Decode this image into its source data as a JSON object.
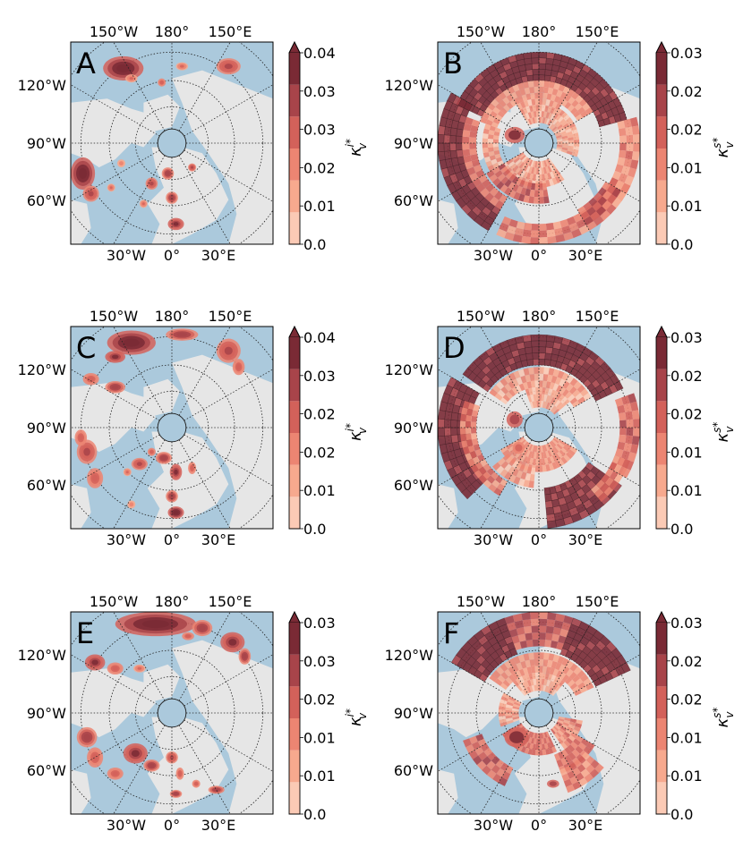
{
  "figure": {
    "panels": [
      {
        "id": "A",
        "label": "A",
        "cbar_ticks": [
          "0.0",
          "0.01",
          "0.02",
          "0.03",
          "0.03",
          "0.04"
        ],
        "cbar_label_sym": "κ",
        "cbar_label_sup": "i*",
        "cbar_label_sub": "v",
        "lon_top": [
          "150°W",
          "180°",
          "150°E"
        ],
        "lon_bottom": [
          "30°W",
          "0°",
          "30°E"
        ],
        "lat_left": [
          "120°W",
          "90°W",
          "60°W"
        ],
        "style": "fine",
        "blobs": [
          [
            0.26,
            0.13,
            0.1,
            0.06,
            1.0
          ],
          [
            0.45,
            0.2,
            0.02,
            0.02,
            0.6
          ],
          [
            0.3,
            0.18,
            0.03,
            0.02,
            0.5
          ],
          [
            0.55,
            0.12,
            0.03,
            0.02,
            0.5
          ],
          [
            0.78,
            0.12,
            0.06,
            0.04,
            0.7
          ],
          [
            0.06,
            0.65,
            0.06,
            0.08,
            1.0
          ],
          [
            0.1,
            0.75,
            0.04,
            0.04,
            0.7
          ],
          [
            0.4,
            0.7,
            0.03,
            0.03,
            0.7
          ],
          [
            0.48,
            0.65,
            0.03,
            0.03,
            0.8
          ],
          [
            0.5,
            0.77,
            0.03,
            0.03,
            0.8
          ],
          [
            0.52,
            0.9,
            0.04,
            0.03,
            0.9
          ],
          [
            0.6,
            0.62,
            0.02,
            0.02,
            0.7
          ],
          [
            0.2,
            0.72,
            0.02,
            0.02,
            0.5
          ],
          [
            0.36,
            0.8,
            0.02,
            0.02,
            0.5
          ],
          [
            0.25,
            0.6,
            0.02,
            0.02,
            0.4
          ]
        ]
      },
      {
        "id": "B",
        "label": "B",
        "cbar_ticks": [
          "0.0",
          "0.01",
          "0.01",
          "0.02",
          "0.02",
          "0.03"
        ],
        "cbar_label_sym": "κ",
        "cbar_label_sup": "s*",
        "cbar_label_sub": "v",
        "lon_top": [
          "150°W",
          "180°",
          "150°E"
        ],
        "lon_bottom": [
          "30°W",
          "0°",
          "30°E"
        ],
        "lat_left": [
          "120°W",
          "90°W",
          "60°W"
        ],
        "style": "coarse",
        "rings": [
          [
            0.31,
            0.45,
            205,
            345,
            0.95
          ],
          [
            0.38,
            0.5,
            120,
            210,
            0.95
          ],
          [
            0.4,
            0.5,
            25,
            115,
            0.45
          ],
          [
            0.4,
            0.5,
            345,
            395,
            0.4
          ],
          [
            0.22,
            0.31,
            200,
            330,
            0.35
          ],
          [
            0.1,
            0.22,
            240,
            300,
            0.3
          ],
          [
            0.09,
            0.2,
            300,
            380,
            0.25
          ],
          [
            0.09,
            0.22,
            55,
            150,
            0.3
          ],
          [
            0.2,
            0.3,
            80,
            150,
            0.55
          ],
          [
            0.2,
            0.28,
            150,
            200,
            0.3
          ],
          [
            0.31,
            0.38,
            120,
            200,
            0.5
          ],
          [
            0.38,
            0.47,
            30,
            60,
            0.6
          ]
        ],
        "blobs": [
          [
            0.38,
            0.46,
            0.05,
            0.04,
            0.85
          ]
        ]
      },
      {
        "id": "C",
        "label": "C",
        "cbar_ticks": [
          "0.0",
          "0.01",
          "0.02",
          "0.02",
          "0.03",
          "0.04"
        ],
        "cbar_label_sym": "κ",
        "cbar_label_sup": "i*",
        "cbar_label_sub": "v",
        "lon_top": [
          "150°W",
          "180°",
          "150°E"
        ],
        "lon_bottom": [
          "30°W",
          "0°",
          "30°E"
        ],
        "lat_left": [
          "120°W",
          "90°W",
          "60°W"
        ],
        "style": "fine",
        "blobs": [
          [
            0.3,
            0.08,
            0.12,
            0.06,
            1.0
          ],
          [
            0.22,
            0.15,
            0.05,
            0.03,
            0.9
          ],
          [
            0.55,
            0.04,
            0.08,
            0.03,
            0.8
          ],
          [
            0.78,
            0.12,
            0.06,
            0.06,
            0.7
          ],
          [
            0.83,
            0.2,
            0.03,
            0.04,
            0.6
          ],
          [
            0.1,
            0.26,
            0.04,
            0.03,
            0.6
          ],
          [
            0.22,
            0.3,
            0.05,
            0.03,
            0.8
          ],
          [
            0.08,
            0.62,
            0.05,
            0.06,
            0.7
          ],
          [
            0.12,
            0.75,
            0.04,
            0.05,
            0.6
          ],
          [
            0.05,
            0.55,
            0.03,
            0.04,
            0.6
          ],
          [
            0.34,
            0.68,
            0.04,
            0.03,
            0.7
          ],
          [
            0.46,
            0.65,
            0.04,
            0.03,
            0.8
          ],
          [
            0.52,
            0.72,
            0.03,
            0.04,
            0.9
          ],
          [
            0.5,
            0.84,
            0.03,
            0.03,
            0.8
          ],
          [
            0.52,
            0.92,
            0.04,
            0.03,
            1.0
          ],
          [
            0.4,
            0.62,
            0.02,
            0.02,
            0.6
          ],
          [
            0.28,
            0.72,
            0.02,
            0.02,
            0.5
          ],
          [
            0.6,
            0.7,
            0.02,
            0.03,
            0.6
          ],
          [
            0.3,
            0.88,
            0.02,
            0.02,
            0.4
          ]
        ]
      },
      {
        "id": "D",
        "label": "D",
        "cbar_ticks": [
          "0.0",
          "0.01",
          "0.01",
          "0.02",
          "0.02",
          "0.03"
        ],
        "cbar_label_sym": "κ",
        "cbar_label_sup": "s*",
        "cbar_label_sub": "v",
        "lon_top": [
          "150°W",
          "180°",
          "150°E"
        ],
        "lon_bottom": [
          "30°W",
          "0°",
          "30°E"
        ],
        "lat_left": [
          "120°W",
          "90°W",
          "60°W"
        ],
        "style": "coarse",
        "rings": [
          [
            0.31,
            0.46,
            215,
            335,
            0.95
          ],
          [
            0.34,
            0.5,
            135,
            210,
            0.95
          ],
          [
            0.3,
            0.5,
            35,
            85,
            0.9
          ],
          [
            0.4,
            0.5,
            340,
            390,
            0.55
          ],
          [
            0.2,
            0.3,
            215,
            330,
            0.3
          ],
          [
            0.09,
            0.22,
            30,
            150,
            0.35
          ],
          [
            0.2,
            0.3,
            95,
            140,
            0.3
          ],
          [
            0.31,
            0.39,
            120,
            200,
            0.45
          ],
          [
            0.4,
            0.48,
            20,
            50,
            0.45
          ],
          [
            0.1,
            0.2,
            250,
            320,
            0.25
          ]
        ],
        "blobs": [
          [
            0.38,
            0.46,
            0.04,
            0.04,
            0.7
          ],
          [
            0.4,
            0.6,
            0.03,
            0.03,
            0.55
          ]
        ]
      },
      {
        "id": "E",
        "label": "E",
        "cbar_ticks": [
          "0.0",
          "0.01",
          "0.01",
          "0.02",
          "0.03",
          "0.03"
        ],
        "cbar_label_sym": "κ",
        "cbar_label_sup": "i*",
        "cbar_label_sub": "v",
        "lon_top": [
          "150°W",
          "180°",
          "150°E"
        ],
        "lon_bottom": [
          "30°W",
          "0°",
          "30°E"
        ],
        "lat_left": [
          "120°W",
          "90°W",
          "60°W"
        ],
        "style": "fine",
        "blobs": [
          [
            0.42,
            0.06,
            0.2,
            0.06,
            1.0
          ],
          [
            0.65,
            0.08,
            0.05,
            0.04,
            0.8
          ],
          [
            0.8,
            0.15,
            0.06,
            0.05,
            0.9
          ],
          [
            0.86,
            0.22,
            0.03,
            0.04,
            0.8
          ],
          [
            0.12,
            0.25,
            0.05,
            0.04,
            0.9
          ],
          [
            0.22,
            0.28,
            0.04,
            0.03,
            0.6
          ],
          [
            0.34,
            0.28,
            0.03,
            0.02,
            0.5
          ],
          [
            0.58,
            0.12,
            0.03,
            0.02,
            0.6
          ],
          [
            0.08,
            0.62,
            0.05,
            0.05,
            0.8
          ],
          [
            0.12,
            0.72,
            0.04,
            0.05,
            0.6
          ],
          [
            0.22,
            0.8,
            0.04,
            0.03,
            0.6
          ],
          [
            0.32,
            0.7,
            0.06,
            0.05,
            0.9
          ],
          [
            0.4,
            0.76,
            0.04,
            0.03,
            0.8
          ],
          [
            0.5,
            0.72,
            0.03,
            0.03,
            0.7
          ],
          [
            0.54,
            0.8,
            0.02,
            0.03,
            0.6
          ],
          [
            0.52,
            0.9,
            0.03,
            0.02,
            0.8
          ],
          [
            0.72,
            0.88,
            0.04,
            0.02,
            0.8
          ],
          [
            0.62,
            0.85,
            0.02,
            0.02,
            0.6
          ]
        ]
      },
      {
        "id": "F",
        "label": "F",
        "cbar_ticks": [
          "0.0",
          "0.01",
          "0.01",
          "0.02",
          "0.02",
          "0.03"
        ],
        "cbar_label_sym": "κ",
        "cbar_label_sup": "s*",
        "cbar_label_sub": "v",
        "lon_top": [
          "150°W",
          "180°",
          "150°E"
        ],
        "lon_bottom": [
          "30°W",
          "0°",
          "30°E"
        ],
        "lat_left": [
          "120°W",
          "90°W",
          "60°W"
        ],
        "style": "coarse",
        "rings": [
          [
            0.31,
            0.5,
            210,
            250,
            0.95
          ],
          [
            0.33,
            0.5,
            250,
            290,
            0.6
          ],
          [
            0.31,
            0.5,
            290,
            335,
            0.95
          ],
          [
            0.2,
            0.3,
            215,
            335,
            0.35
          ],
          [
            0.3,
            0.4,
            115,
            160,
            0.55
          ],
          [
            0.1,
            0.21,
            65,
            150,
            0.5
          ],
          [
            0.1,
            0.22,
            10,
            55,
            0.4
          ],
          [
            0.22,
            0.32,
            30,
            70,
            0.5
          ],
          [
            0.3,
            0.42,
            40,
            70,
            0.45
          ],
          [
            0.1,
            0.2,
            160,
            210,
            0.3
          ],
          [
            0.11,
            0.2,
            230,
            310,
            0.25
          ]
        ],
        "blobs": [
          [
            0.39,
            0.62,
            0.06,
            0.05,
            0.9
          ],
          [
            0.57,
            0.85,
            0.03,
            0.02,
            0.7
          ]
        ]
      }
    ]
  }
}
